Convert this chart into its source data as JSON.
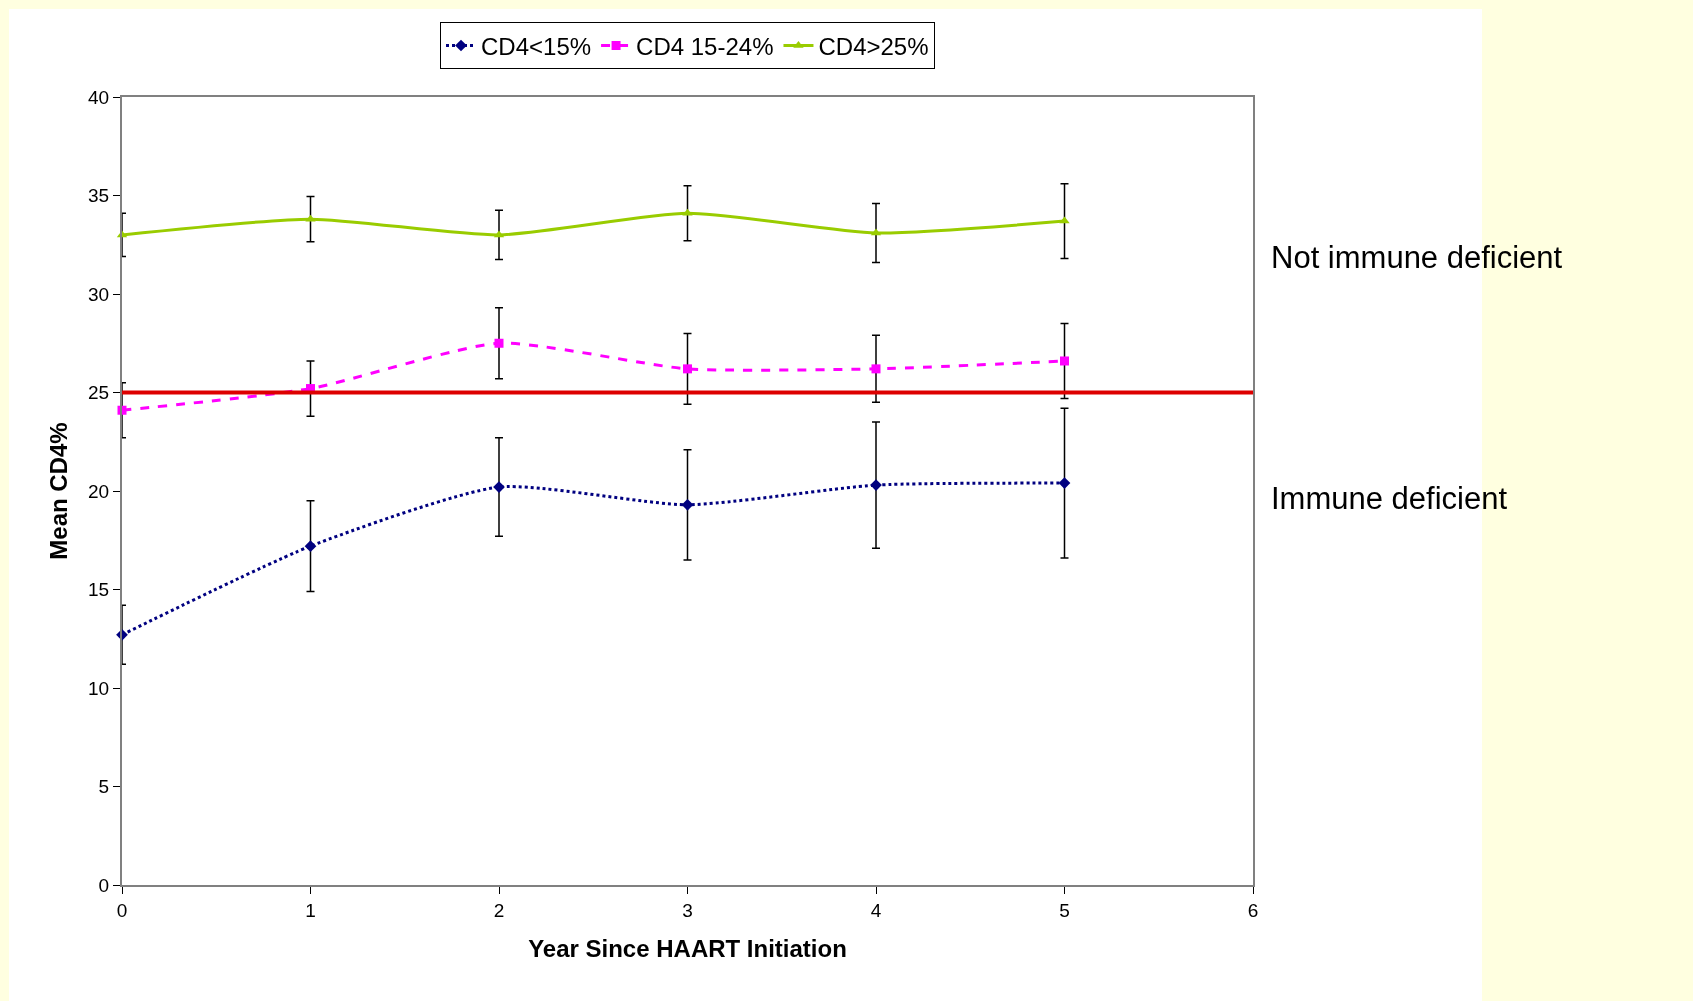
{
  "chart_data": {
    "type": "line",
    "xlabel": "Year Since HAART Initiation",
    "ylabel": "Mean CD4%",
    "x": [
      0,
      1,
      2,
      3,
      4,
      5
    ],
    "xlim": [
      0,
      6
    ],
    "xticks": [
      0,
      1,
      2,
      3,
      4,
      5,
      6
    ],
    "ylim": [
      0,
      40
    ],
    "yticks": [
      0,
      5,
      10,
      15,
      20,
      25,
      30,
      35,
      40
    ],
    "grid": false,
    "legend": "top",
    "series": [
      {
        "name": "CD4<15%",
        "color": "#000080",
        "marker": "diamond",
        "line_style": "dotted",
        "values": [
          12.7,
          17.2,
          20.2,
          19.3,
          20.3,
          20.4
        ],
        "errors": [
          1.5,
          2.3,
          2.5,
          2.8,
          3.2,
          3.8
        ]
      },
      {
        "name": "CD4 15-24%",
        "color": "#ff00ff",
        "marker": "square",
        "line_style": "dashed",
        "values": [
          24.1,
          25.2,
          27.5,
          26.2,
          26.2,
          26.6
        ],
        "errors": [
          1.4,
          1.4,
          1.8,
          1.8,
          1.7,
          1.9
        ]
      },
      {
        "name": "CD4>25%",
        "color": "#99cc00",
        "marker": "triangle",
        "line_style": "solid",
        "values": [
          33.0,
          33.8,
          33.0,
          34.1,
          33.1,
          33.7
        ],
        "errors": [
          1.1,
          1.15,
          1.25,
          1.4,
          1.5,
          1.9
        ]
      }
    ],
    "ref_lines": [
      {
        "axis": "y",
        "value": 25,
        "color": "#dd0000",
        "line_style": "solid"
      }
    ],
    "annotations": [
      "Not immune deficient",
      "Immune deficient"
    ]
  }
}
